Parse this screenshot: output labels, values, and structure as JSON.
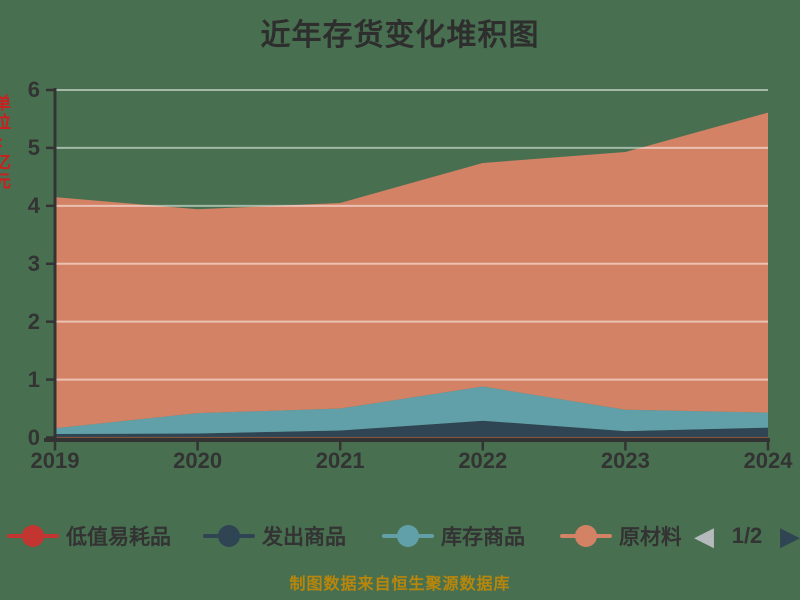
{
  "title": "近年存货变化堆积图",
  "y_axis_unit_label": "单位:亿元",
  "footer_note": "制图数据来自恒生聚源数据库",
  "colors": {
    "background": "#487050",
    "axis": "#333333",
    "tick_label": "#333333",
    "gridline": "rgba(255,255,255,0.5)",
    "title_text": "#2e2e2e",
    "footer_text": "#b8860b",
    "unit_label_text": "#cc1e1e",
    "pager_prev_arrow": "#b5babc",
    "pager_next_arrow": "#2f4554"
  },
  "icons": {
    "prev_page_icon": "◀",
    "next_page_icon": "▶"
  },
  "legend": {
    "page_indicator": "1/2"
  },
  "chart_data": {
    "type": "area",
    "stacked": true,
    "title": "近年存货变化堆积图",
    "x": [
      "2019",
      "2020",
      "2021",
      "2022",
      "2023",
      "2024"
    ],
    "xlabel": "",
    "ylabel": "单位:亿元",
    "ylim": [
      0,
      6
    ],
    "yticks": [
      0,
      1,
      2,
      3,
      4,
      5,
      6
    ],
    "grid": true,
    "legend_position": "bottom",
    "legend_page": "1/2",
    "series": [
      {
        "name": "低值易耗品",
        "color": "#c23531",
        "values": [
          0.01,
          0.01,
          0.01,
          0.01,
          0.01,
          0.01
        ]
      },
      {
        "name": "发出商品",
        "color": "#2f4554",
        "values": [
          0.05,
          0.06,
          0.11,
          0.28,
          0.1,
          0.16
        ]
      },
      {
        "name": "库存商品",
        "color": "#61a0a8",
        "values": [
          0.1,
          0.35,
          0.38,
          0.59,
          0.37,
          0.26
        ]
      },
      {
        "name": "原材料",
        "color": "#d48265",
        "values": [
          3.99,
          3.52,
          3.55,
          3.86,
          4.45,
          5.18
        ]
      }
    ],
    "totals": [
      4.15,
      3.94,
      4.05,
      4.74,
      4.93,
      5.61
    ]
  }
}
